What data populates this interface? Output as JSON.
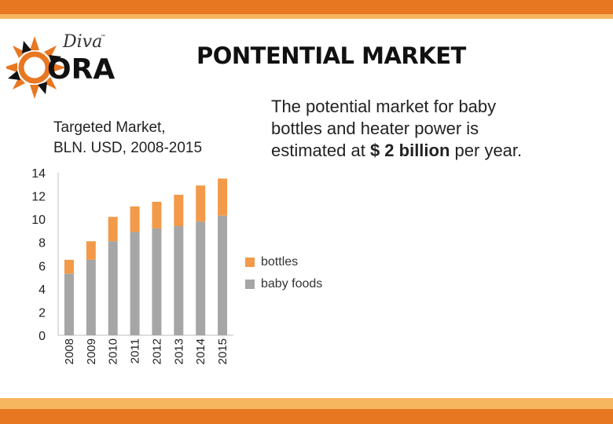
{
  "header": {
    "title": "PONTENTIAL MARKET",
    "logo_script": "Diva",
    "logo_main": "ORA",
    "logo_tm": "™"
  },
  "description": {
    "line1": "The potential market for baby",
    "line2": "bottles and heater power is",
    "line3_pre": "estimated at ",
    "line3_bold": "$ 2 billion",
    "line3_post": " per year."
  },
  "colors": {
    "accent": "#e87722",
    "accent_light": "#f6b65f",
    "bottles": "#f39a4a",
    "baby_foods": "#a6a6a6"
  },
  "chart_data": {
    "type": "bar",
    "stacked": true,
    "title_line1": "Targeted Market,",
    "title_line2": "BLN. USD, 2008-2015",
    "categories": [
      "2008",
      "2009",
      "2010",
      "2011",
      "2012",
      "2013",
      "2014",
      "2015"
    ],
    "series": [
      {
        "name": "baby foods",
        "color": "#a6a6a6",
        "values": [
          5.3,
          6.5,
          8.1,
          8.9,
          9.2,
          9.4,
          9.8,
          10.3
        ]
      },
      {
        "name": "bottles",
        "color": "#f39a4a",
        "values": [
          1.2,
          1.6,
          2.1,
          2.2,
          2.3,
          2.7,
          3.1,
          3.2
        ]
      }
    ],
    "ylim": [
      0,
      14
    ],
    "yticks": [
      0,
      2,
      4,
      6,
      8,
      10,
      12,
      14
    ],
    "grid": false,
    "legend_position": "right"
  }
}
